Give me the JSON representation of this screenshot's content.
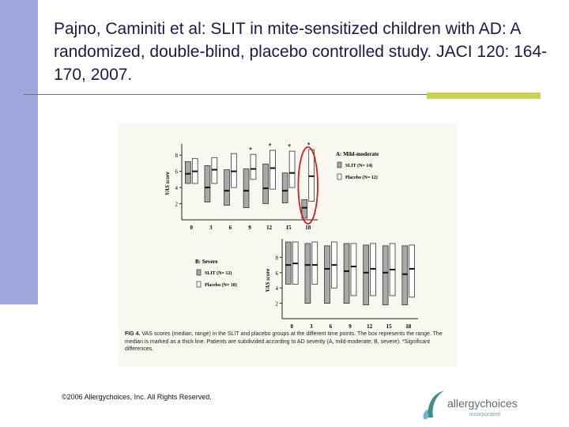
{
  "slide": {
    "title": "Pajno, Caminiti et al:  SLIT in mite-sensitized children with AD:  A randomized, double-blind, placebo controlled study.  JACI 120: 164-170, 2007.",
    "copyright": "©2006 Allergychoices, Inc. All Rights Reserved.",
    "logo_text": "allergychoices",
    "logo_tagline": "incorporated"
  },
  "colors": {
    "sidebar": "#9fa6db",
    "accent_bar": "#ccd14e",
    "title_text": "#1a1a4a",
    "highlight_circle": "#d42020"
  },
  "figure": {
    "caption_label": "FIG 4.",
    "caption": "VAS scores (median, range) in the SLIT and placebo groups at the different time points. The box represents the range. The median is marked as a thick line. Patients are subdivided according to AD severity (A, mild-moderate; B, severe). *Significant differences."
  },
  "chart_data": [
    {
      "type": "box",
      "panel": "A: Mild-moderate",
      "ylabel": "VAS score",
      "categories": [
        "0",
        "3",
        "6",
        "9",
        "12",
        "15",
        "18"
      ],
      "yticks": [
        2,
        4,
        6,
        8
      ],
      "ylim": [
        0,
        9
      ],
      "significant": [
        "9",
        "12",
        "15",
        "18"
      ],
      "highlighted": "18",
      "series": [
        {
          "name": "SLIT (N= 14)",
          "fill": "#a8a8a8",
          "boxes": [
            [
              4.5,
              5.7,
              7.2
            ],
            [
              2.2,
              4.0,
              6.7
            ],
            [
              1.8,
              3.6,
              6.2
            ],
            [
              1.5,
              3.6,
              6.3
            ],
            [
              2.0,
              3.9,
              6.9
            ],
            [
              2.1,
              3.6,
              5.8
            ],
            [
              0.2,
              1.5,
              2.5
            ]
          ]
        },
        {
          "name": "Placebo (N= 12)",
          "fill": "#ffffff",
          "boxes": [
            [
              4.5,
              6.0,
              7.6
            ],
            [
              4.5,
              6.2,
              7.7
            ],
            [
              4.0,
              6.0,
              8.2
            ],
            [
              5.0,
              6.3,
              8.1
            ],
            [
              3.8,
              6.4,
              8.6
            ],
            [
              4.0,
              5.8,
              8.5
            ],
            [
              2.3,
              5.4,
              8.7
            ]
          ]
        }
      ]
    },
    {
      "type": "box",
      "panel": "B: Severe",
      "ylabel": "VAS score",
      "categories": [
        "0",
        "3",
        "6",
        "9",
        "12",
        "15",
        "18"
      ],
      "yticks": [
        2,
        4,
        6,
        8
      ],
      "ylim": [
        0,
        10
      ],
      "series": [
        {
          "name": "SLIT (N= 12)",
          "fill": "#a8a8a8",
          "boxes": [
            [
              4.5,
              7.0,
              10.0
            ],
            [
              2.0,
              7.0,
              9.8
            ],
            [
              2.0,
              6.5,
              9.5
            ],
            [
              2.0,
              6.2,
              9.8
            ],
            [
              1.8,
              6.0,
              9.6
            ],
            [
              1.8,
              6.0,
              9.5
            ],
            [
              1.8,
              5.8,
              9.5
            ]
          ]
        },
        {
          "name": "Placebo (N= 10)",
          "fill": "#ffffff",
          "boxes": [
            [
              4.5,
              7.2,
              10.0
            ],
            [
              4.5,
              7.0,
              10.0
            ],
            [
              4.0,
              7.0,
              10.0
            ],
            [
              3.0,
              6.8,
              9.8
            ],
            [
              3.0,
              6.5,
              9.8
            ],
            [
              3.0,
              6.4,
              9.8
            ],
            [
              2.8,
              6.5,
              9.6
            ]
          ]
        }
      ]
    }
  ]
}
